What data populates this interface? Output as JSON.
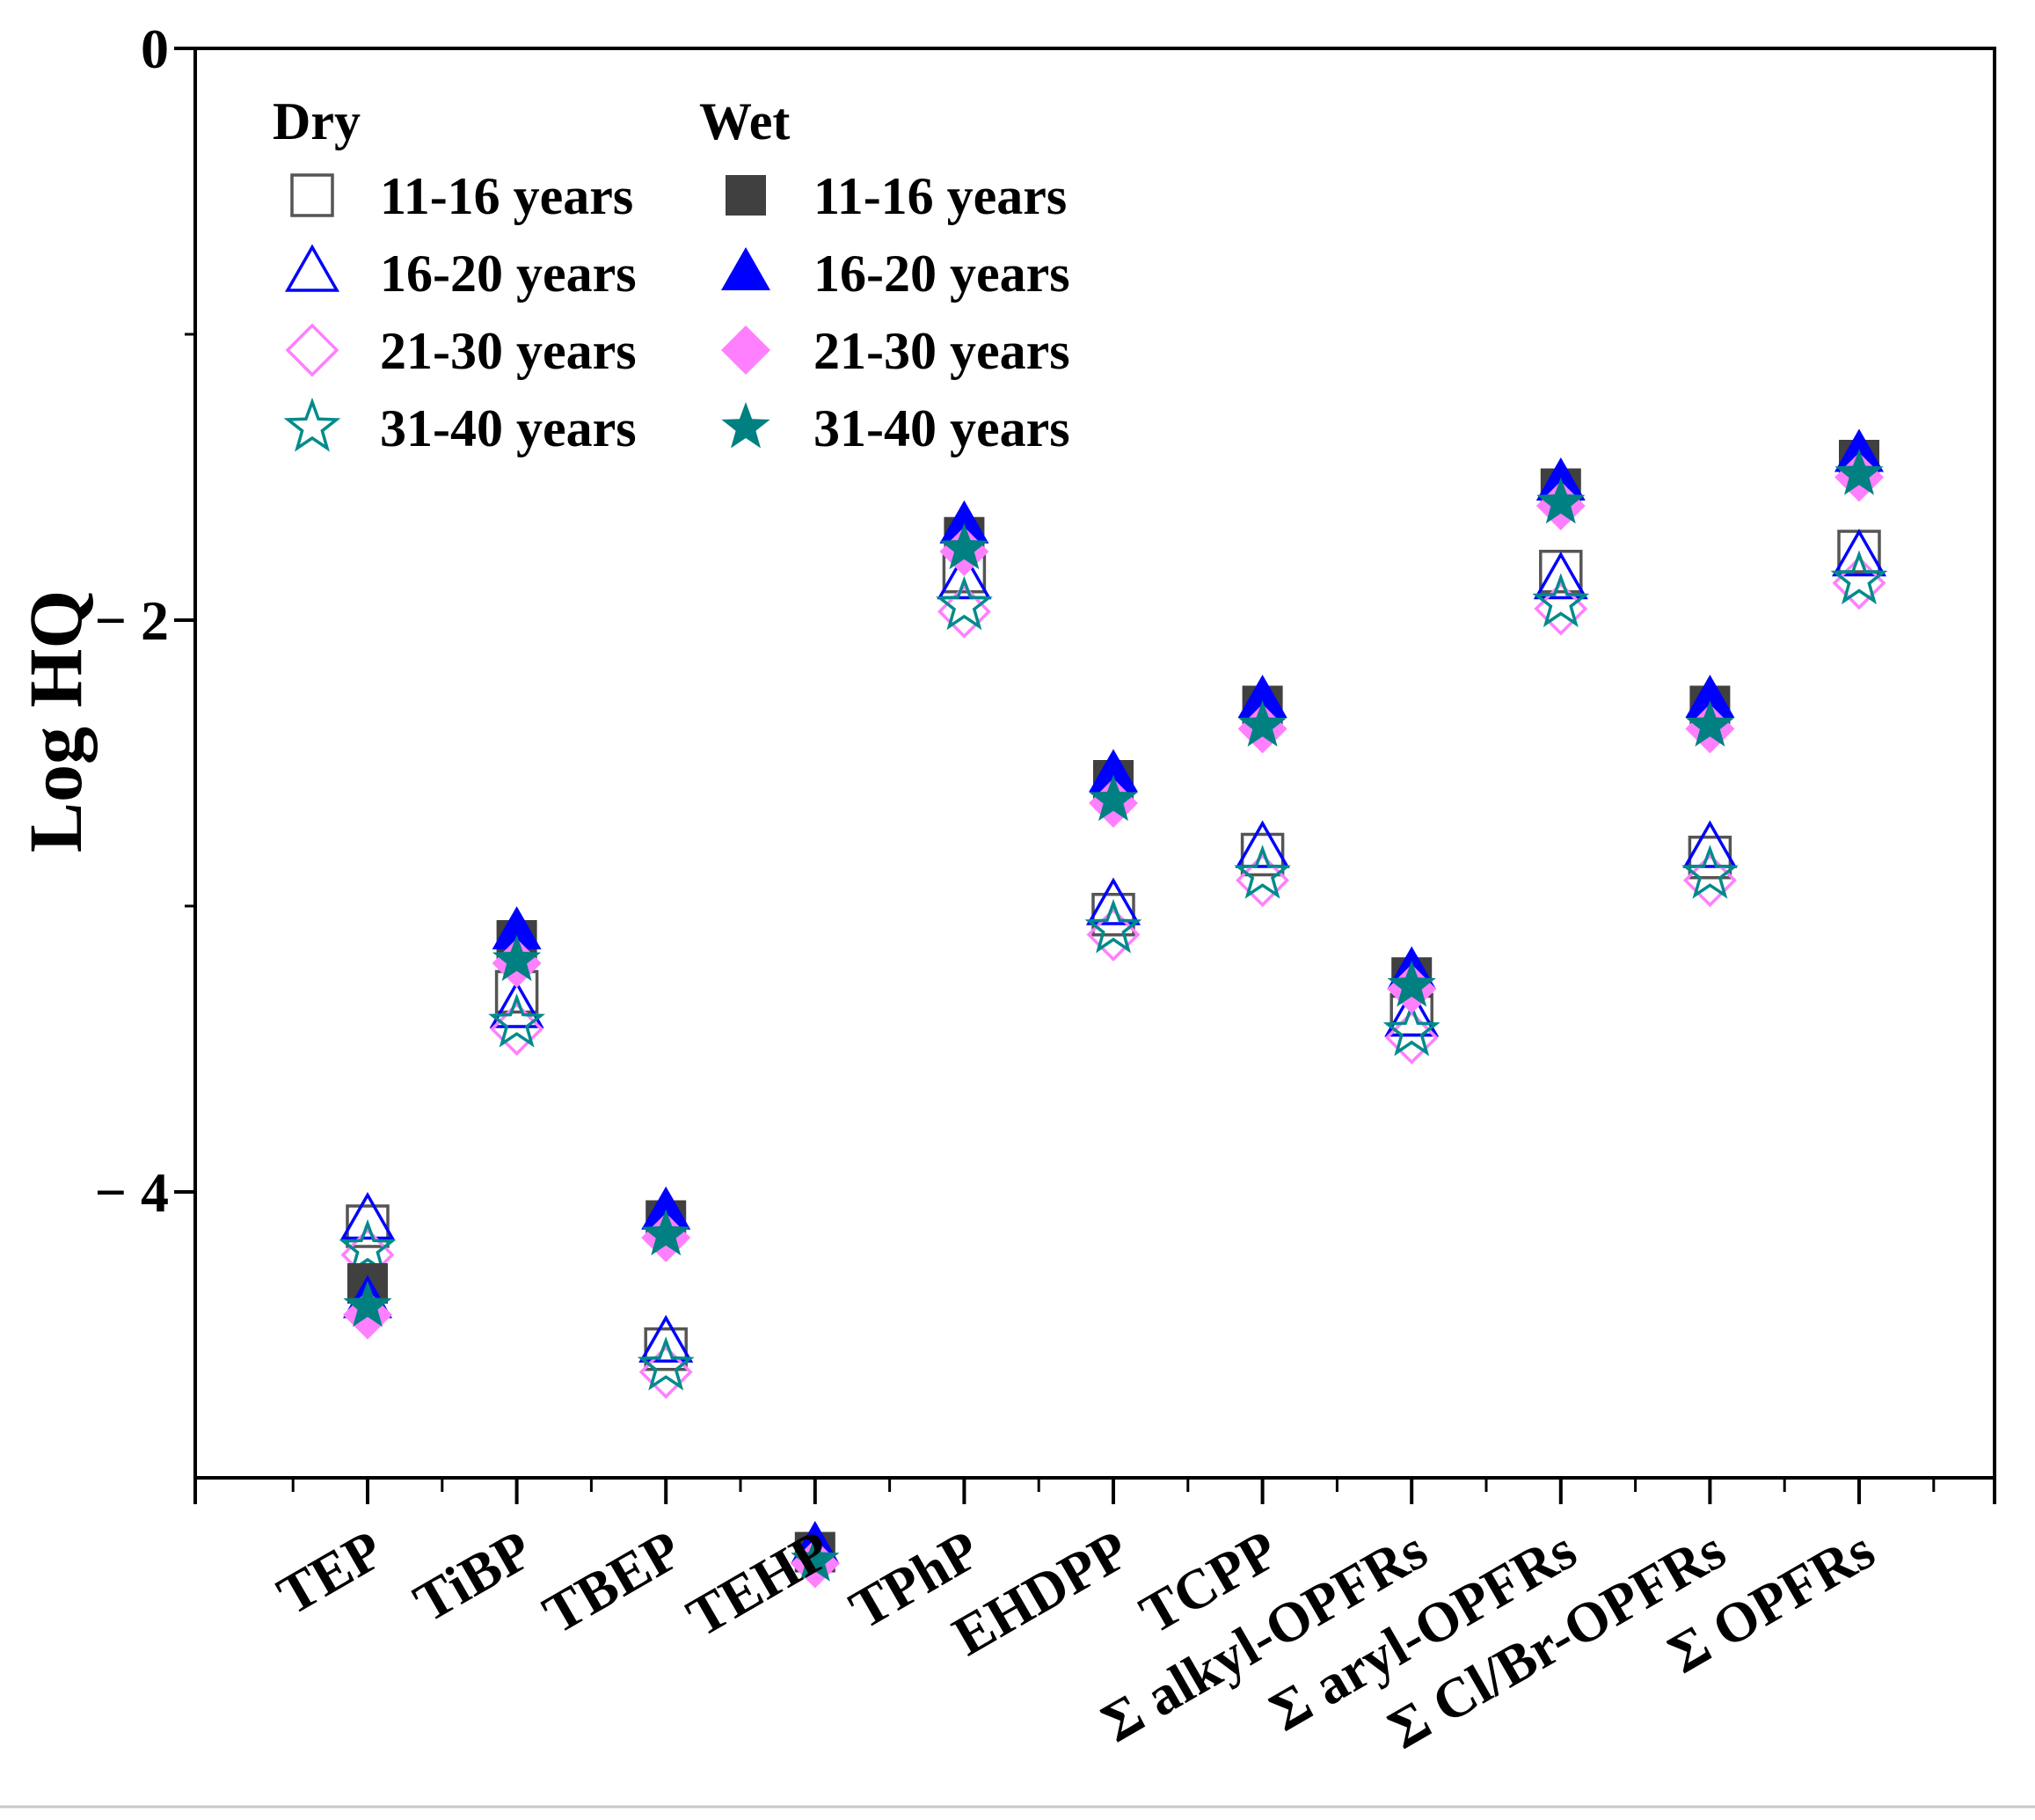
{
  "chart_data": {
    "type": "scatter",
    "ylabel": "Log HQ",
    "xlabel": "",
    "ylim": [
      -5,
      0
    ],
    "yticks": [
      0,
      -2,
      -4
    ],
    "ytick_labels": [
      "0",
      "− 2",
      "− 4"
    ],
    "categories": [
      "TEP",
      "TiBP",
      "TBEP",
      "TEHP",
      "TPhP",
      "EHDPP",
      "TCPP",
      "Σ alkyl-OPFRs",
      "Σ aryl-OPFRs",
      "Σ Cl/Br-OPFRs",
      "Σ OPFRs"
    ],
    "legend": {
      "placement": "top-left",
      "groups": [
        {
          "heading": "Dry",
          "entries": [
            "11-16 years",
            "16-20 years",
            "21-30 years",
            "31-40 years"
          ]
        },
        {
          "heading": "Wet",
          "entries": [
            "11-16 years",
            "16-20 years",
            "21-30 years",
            "31-40 years"
          ]
        }
      ]
    },
    "series": [
      {
        "name": "11-16 years",
        "group": "Dry",
        "marker": "square-open",
        "color": "#555555",
        "values": [
          -4.12,
          -3.3,
          -4.55,
          null,
          -1.83,
          -3.03,
          -2.82,
          -3.38,
          -1.83,
          -2.83,
          -1.76
        ]
      },
      {
        "name": "16-20 years",
        "group": "Dry",
        "marker": "triangle-open",
        "color": "#0000ff",
        "values": [
          -4.1,
          -3.36,
          -4.53,
          null,
          -1.86,
          -3.0,
          -2.8,
          -3.39,
          -1.86,
          -2.8,
          -1.78
        ]
      },
      {
        "name": "21-30 years",
        "group": "Dry",
        "marker": "diamond-open",
        "color": "#ff7fff",
        "values": [
          -4.22,
          -3.43,
          -4.63,
          null,
          -1.97,
          -3.1,
          -2.91,
          -3.46,
          -1.96,
          -2.91,
          -1.87
        ]
      },
      {
        "name": "31-40 years",
        "group": "Dry",
        "marker": "star-open",
        "color": "#008b8b",
        "values": [
          -4.2,
          -3.41,
          -4.61,
          null,
          -1.95,
          -3.08,
          -2.89,
          -3.44,
          -1.94,
          -2.89,
          -1.86
        ]
      },
      {
        "name": "11-16 years",
        "group": "Wet",
        "marker": "square-filled",
        "color": "#404040",
        "values": [
          -4.32,
          -3.12,
          -4.1,
          -5.26,
          -1.71,
          -2.56,
          -2.3,
          -3.25,
          -1.54,
          -2.3,
          -1.44
        ]
      },
      {
        "name": "16-20 years",
        "group": "Wet",
        "marker": "triangle-filled",
        "color": "#0000ff",
        "values": [
          -4.38,
          -3.09,
          -4.07,
          -5.24,
          -1.67,
          -2.54,
          -2.28,
          -3.23,
          -1.52,
          -2.28,
          -1.42
        ]
      },
      {
        "name": "21-30 years",
        "group": "Wet",
        "marker": "diamond-filled",
        "color": "#ff80ff",
        "values": [
          -4.43,
          -3.2,
          -4.16,
          -5.3,
          -1.76,
          -2.64,
          -2.38,
          -3.29,
          -1.6,
          -2.38,
          -1.5
        ]
      },
      {
        "name": "31-40 years",
        "group": "Wet",
        "marker": "star-filled",
        "color": "#008080",
        "values": [
          -4.4,
          -3.19,
          -4.15,
          -5.29,
          -1.75,
          -2.63,
          -2.37,
          -3.28,
          -1.59,
          -2.37,
          -1.49
        ]
      }
    ]
  }
}
